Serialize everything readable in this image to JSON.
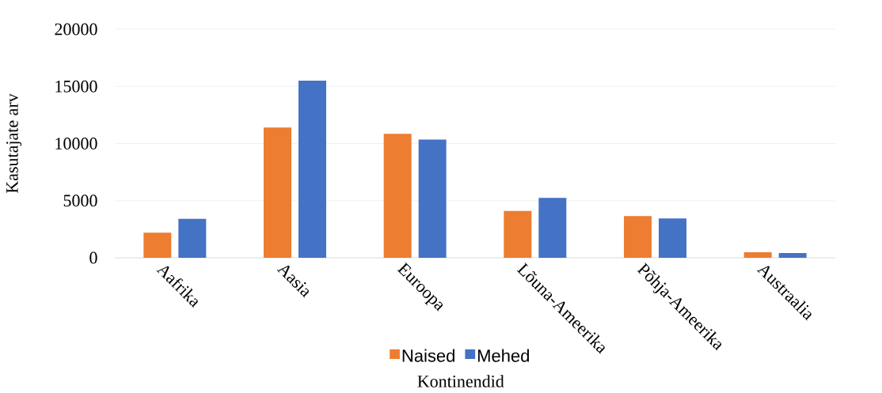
{
  "chart_data": {
    "type": "bar",
    "xlabel": "Kontinendid",
    "ylabel": "Kasutajate arv",
    "categories": [
      "Aafrika",
      "Aasia",
      "Euroopa",
      "Lõuna-Ameerika",
      "Põhja-Ameerika",
      "Austraalia"
    ],
    "series": [
      {
        "name": "Naised",
        "color": "#ed7d31",
        "values": [
          2200,
          11400,
          10850,
          4100,
          3650,
          480
        ]
      },
      {
        "name": "Mehed",
        "color": "#4472c4",
        "values": [
          3400,
          15500,
          10350,
          5250,
          3450,
          420
        ]
      }
    ],
    "ylim": [
      0,
      20000
    ],
    "yticks": [
      0,
      5000,
      10000,
      15000,
      20000
    ],
    "grid": "y",
    "legend": "bottom"
  }
}
